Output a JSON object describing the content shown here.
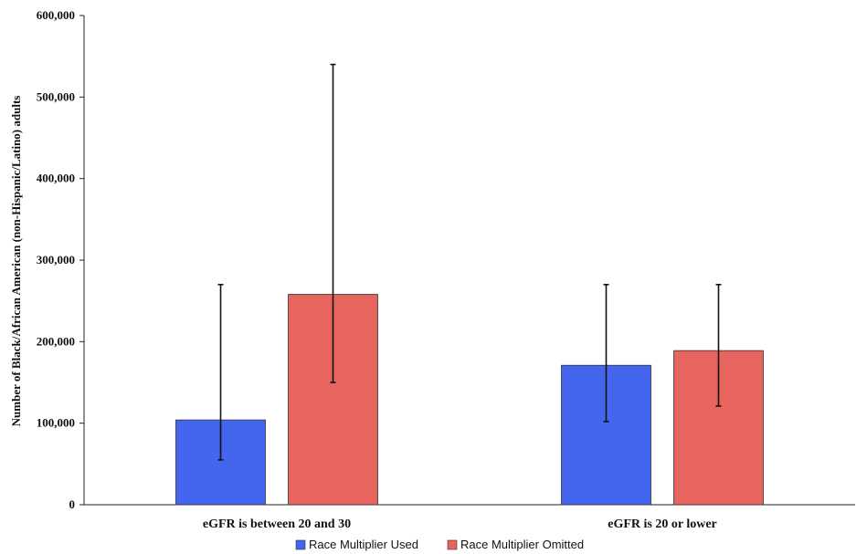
{
  "chart_data": {
    "type": "bar",
    "title": "",
    "xlabel": "",
    "ylabel": "Number of Black/African American (non-Hispanic/Latino) adults",
    "ylim": [
      0,
      600000
    ],
    "yticks": [
      "0",
      "100,000",
      "200,000",
      "300,000",
      "400,000",
      "500,000",
      "600,000"
    ],
    "categories": [
      "eGFR is between 20 and 30",
      "eGFR is 20 or lower"
    ],
    "series": [
      {
        "name": "Race Multiplier Used",
        "color": "#4466ee",
        "values": [
          104000,
          171000
        ],
        "error_low": [
          55000,
          102000
        ],
        "error_high": [
          270000,
          270000
        ]
      },
      {
        "name": "Race Multiplier Omitted",
        "color": "#e8645e",
        "values": [
          258000,
          189000
        ],
        "error_low": [
          150000,
          121000
        ],
        "error_high": [
          540000,
          270000
        ]
      }
    ],
    "grid": false,
    "legend_position": "bottom"
  }
}
